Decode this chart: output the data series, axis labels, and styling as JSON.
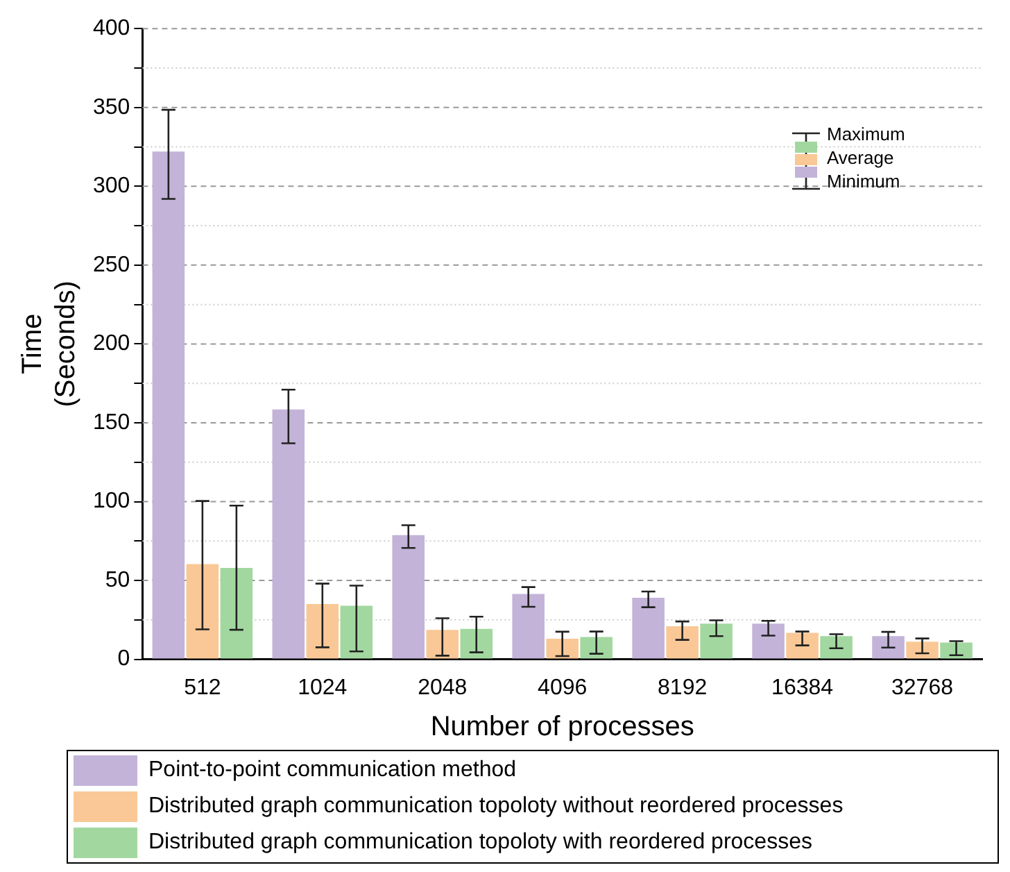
{
  "chart_data": {
    "type": "bar",
    "xlabel": "Number of processes",
    "ylabel": "Time (Seconds)",
    "categories": [
      "512",
      "1024",
      "2048",
      "4096",
      "8192",
      "16384",
      "32768"
    ],
    "series": [
      {
        "name": "Point-to-point communication method",
        "color": "#c3b3d8",
        "values": [
          322,
          158.5,
          78.8,
          41.4,
          39,
          22.6,
          14.7
        ],
        "errors": [
          [
            292,
            348.5
          ],
          [
            137,
            171
          ],
          [
            70.6,
            85
          ],
          [
            33.3,
            45.8
          ],
          [
            33,
            43
          ],
          [
            15,
            24.4
          ],
          [
            7.4,
            17.4
          ]
        ]
      },
      {
        "name": "Distributed graph communication topoloty without reordered processes",
        "color": "#f9c896",
        "values": [
          60.4,
          35,
          18.7,
          13,
          21,
          16.8,
          11.2
        ],
        "errors": [
          [
            19,
            100.4
          ],
          [
            7.6,
            48
          ],
          [
            2.3,
            26
          ],
          [
            2,
            17.5
          ],
          [
            12.3,
            24
          ],
          [
            8.8,
            17.6
          ],
          [
            3.8,
            13.2
          ]
        ]
      },
      {
        "name": "Distributed graph communication topoloty with reordered processes",
        "color": "#a2d8a0",
        "values": [
          58,
          34,
          19.3,
          14.1,
          22.6,
          14.7,
          10.6
        ],
        "errors": [
          [
            18.7,
            97.5
          ],
          [
            5,
            46.7
          ],
          [
            4.4,
            27
          ],
          [
            3.5,
            17.6
          ],
          [
            14.7,
            24.7
          ],
          [
            7,
            15.9
          ],
          [
            2.6,
            11.5
          ]
        ]
      }
    ],
    "ylim": [
      0,
      400
    ],
    "yticks": [
      0,
      {
        "value": 25,
        "label": null
      },
      50,
      {
        "value": 75,
        "label": null
      },
      100,
      {
        "value": 125,
        "label": null
      },
      150,
      {
        "value": 175,
        "label": null
      },
      200,
      {
        "value": 225,
        "label": null
      },
      250,
      {
        "value": 275,
        "label": null
      },
      300,
      {
        "value": 325,
        "label": null
      },
      350,
      {
        "value": 375,
        "label": null
      },
      400
    ],
    "grid": "y",
    "legend": "bottom",
    "annotations": [
      "Maximum",
      "Average",
      "Minimum"
    ]
  }
}
